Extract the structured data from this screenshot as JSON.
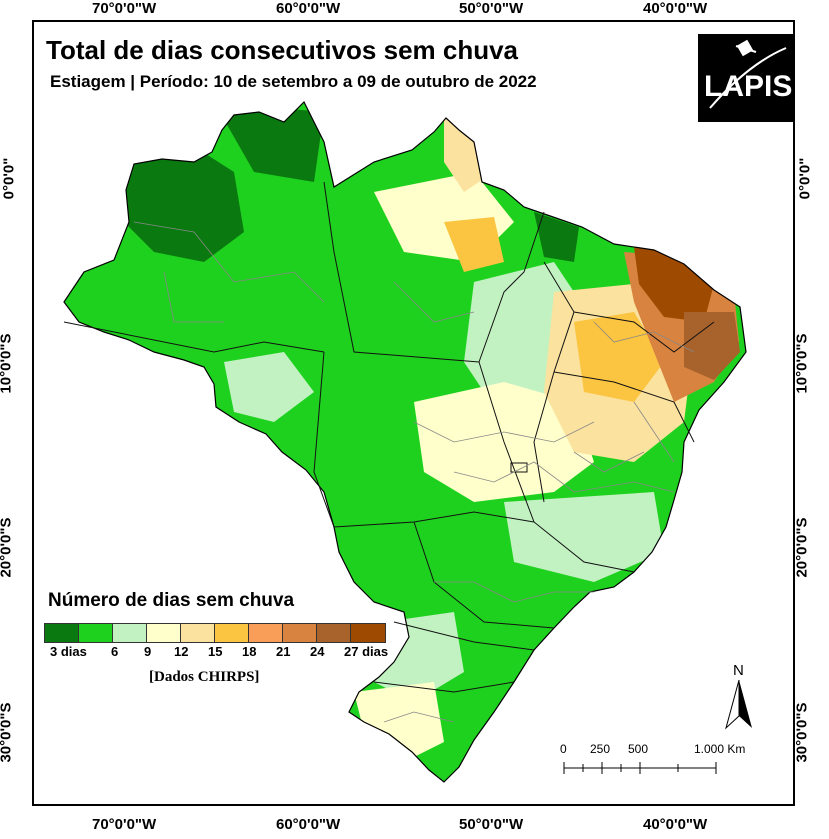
{
  "map": {
    "title": "Total de dias consecutivos sem chuva",
    "subtitle": "Estiagem | Período: 10 de setembro a 09 de outubro de 2022",
    "logo_text": "LAPIS",
    "source": "[Dados CHIRPS]"
  },
  "graticule": {
    "longitudes": [
      "70°0'0\"W",
      "60°0'0\"W",
      "50°0'0\"W",
      "40°0'0\"W"
    ],
    "latitudes": [
      "0°0'0\"",
      "10°0'0\"S",
      "20°0'0\"S",
      "30°0'0\"S"
    ]
  },
  "legend": {
    "title": "Número de dias sem chuva",
    "classes": [
      {
        "label": "3 dias",
        "color": "#0a7a10"
      },
      {
        "label": "6",
        "color": "#1fd11f"
      },
      {
        "label": "9",
        "color": "#c2f2c2"
      },
      {
        "label": "12",
        "color": "#ffffcc"
      },
      {
        "label": "15",
        "color": "#fbe29e"
      },
      {
        "label": "18",
        "color": "#fbc441"
      },
      {
        "label": "21",
        "color": "#f99e59"
      },
      {
        "label": "24",
        "color": "#d88440"
      },
      {
        "label": "27 dias",
        "color": "#a8622c"
      },
      {
        "label": "",
        "color": "#9e4a00"
      }
    ]
  },
  "north_arrow": {
    "label": "N"
  },
  "scale_bar": {
    "labels": [
      "0",
      "250",
      "500",
      "1.000 Km"
    ]
  }
}
